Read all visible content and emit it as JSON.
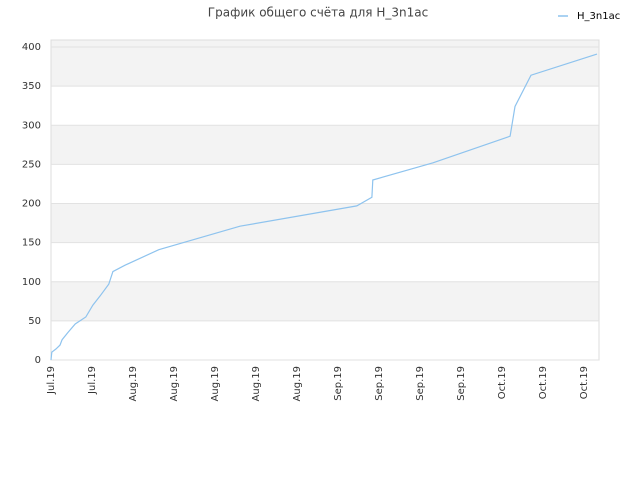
{
  "chart_data": {
    "type": "line",
    "title": "График общего счёта для H_3n1ac",
    "categories": [
      "Jul.19",
      "Jul.19",
      "Aug.19",
      "Aug.19",
      "Aug.19",
      "Aug.19",
      "Aug.19",
      "Sep.19",
      "Sep.19",
      "Sep.19",
      "Sep.19",
      "Oct.19",
      "Oct.19",
      "Oct.19"
    ],
    "x": [
      0,
      0.02,
      0.12,
      0.22,
      0.27,
      0.41,
      0.59,
      0.85,
      1.02,
      1.2,
      1.41,
      1.51,
      1.8,
      2.63,
      4.61,
      7.46,
      7.83,
      7.85,
      9.32,
      11.2,
      11.32,
      11.71,
      13.32
    ],
    "xlim": [
      0,
      13.37
    ],
    "series": [
      {
        "name": "H_3n1ac",
        "color": "#8ec3ee",
        "values": [
          0,
          10,
          14,
          19,
          26,
          35,
          46,
          55,
          70,
          82,
          97,
          113,
          121,
          141,
          171,
          197,
          208,
          230,
          252,
          286,
          324,
          364,
          391
        ]
      }
    ],
    "ylim": [
      0,
      409
    ],
    "yticks": [
      0,
      50,
      100,
      150,
      200,
      250,
      300,
      350,
      400
    ],
    "grid": true,
    "legend": "top-right"
  }
}
